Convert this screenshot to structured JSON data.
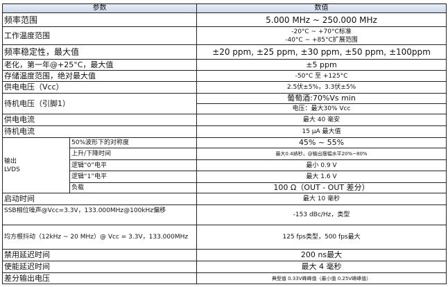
{
  "header": {
    "param": "参数",
    "value": "数值"
  },
  "rows": [
    {
      "param": "频率范围",
      "value": "5.000 MHz ~ 250.000 MHz"
    },
    {
      "param": "工作温度范围",
      "value1": "-20°C ~ +70°C标准",
      "value2": "-40°C ~ +85°C扩展范围"
    },
    {
      "param": "频率稳定性，最大值",
      "value": "±20 ppm, ±25 ppm, ±30 ppm, ±50 ppm, ±100ppm"
    },
    {
      "param": "老化，第一年@+25°C，最大值",
      "value": "±5 ppm"
    },
    {
      "param": "存储温度范围，绝对最大值",
      "value": "-50°C 至 +125°C"
    },
    {
      "param": "供电电压（Vcc）",
      "value": "2.5伏±5%，3.3伏±5%"
    },
    {
      "param": "待机电压（引脚1）",
      "value1": "葡萄酒:70%Vs min",
      "value2": "电压：最大30% Vcc"
    },
    {
      "param": "供电电流",
      "value": "最大 40 毫安"
    },
    {
      "param": "待机电流",
      "value": "15 µA 最大值"
    }
  ],
  "output": {
    "label1": "输出",
    "label2": "LVDS",
    "items": [
      {
        "param": "50%波形下的对称度",
        "value": "45% ~ 55%"
      },
      {
        "param": "上升/下降时间",
        "value": "最大0.4纳秒，@输出摆幅水平20%~80%"
      },
      {
        "param": "逻辑“0”电平",
        "value": "最小 0.9 V"
      },
      {
        "param": "逻辑“1”电平",
        "value": "最大 1.6 V"
      },
      {
        "param": "负载",
        "value": "100 Ω（OUT - OUT 差分）"
      }
    ]
  },
  "rows2": [
    {
      "param": "启动时间",
      "value": "最大 10 毫秒"
    },
    {
      "param": "SSB相位噪声@Vcc=3.3V，133.000MHz@100kHz偏移",
      "value": "-153 dBc/Hz，类型"
    },
    {
      "param": "均方根抖动（12kHz ~ 20 MHz）@ Vcc = 3.3V，133.000MHz",
      "value": "125 fps类型，500 fps最大"
    },
    {
      "param": "禁用延迟时间",
      "value": "200 ns最大"
    },
    {
      "param": "使能延迟时间",
      "value": "最大 4 毫秒"
    },
    {
      "param": "差分输出电压",
      "value": "典型值 0.33V峰峰值（最小值 0.25V峰峰值）"
    }
  ]
}
